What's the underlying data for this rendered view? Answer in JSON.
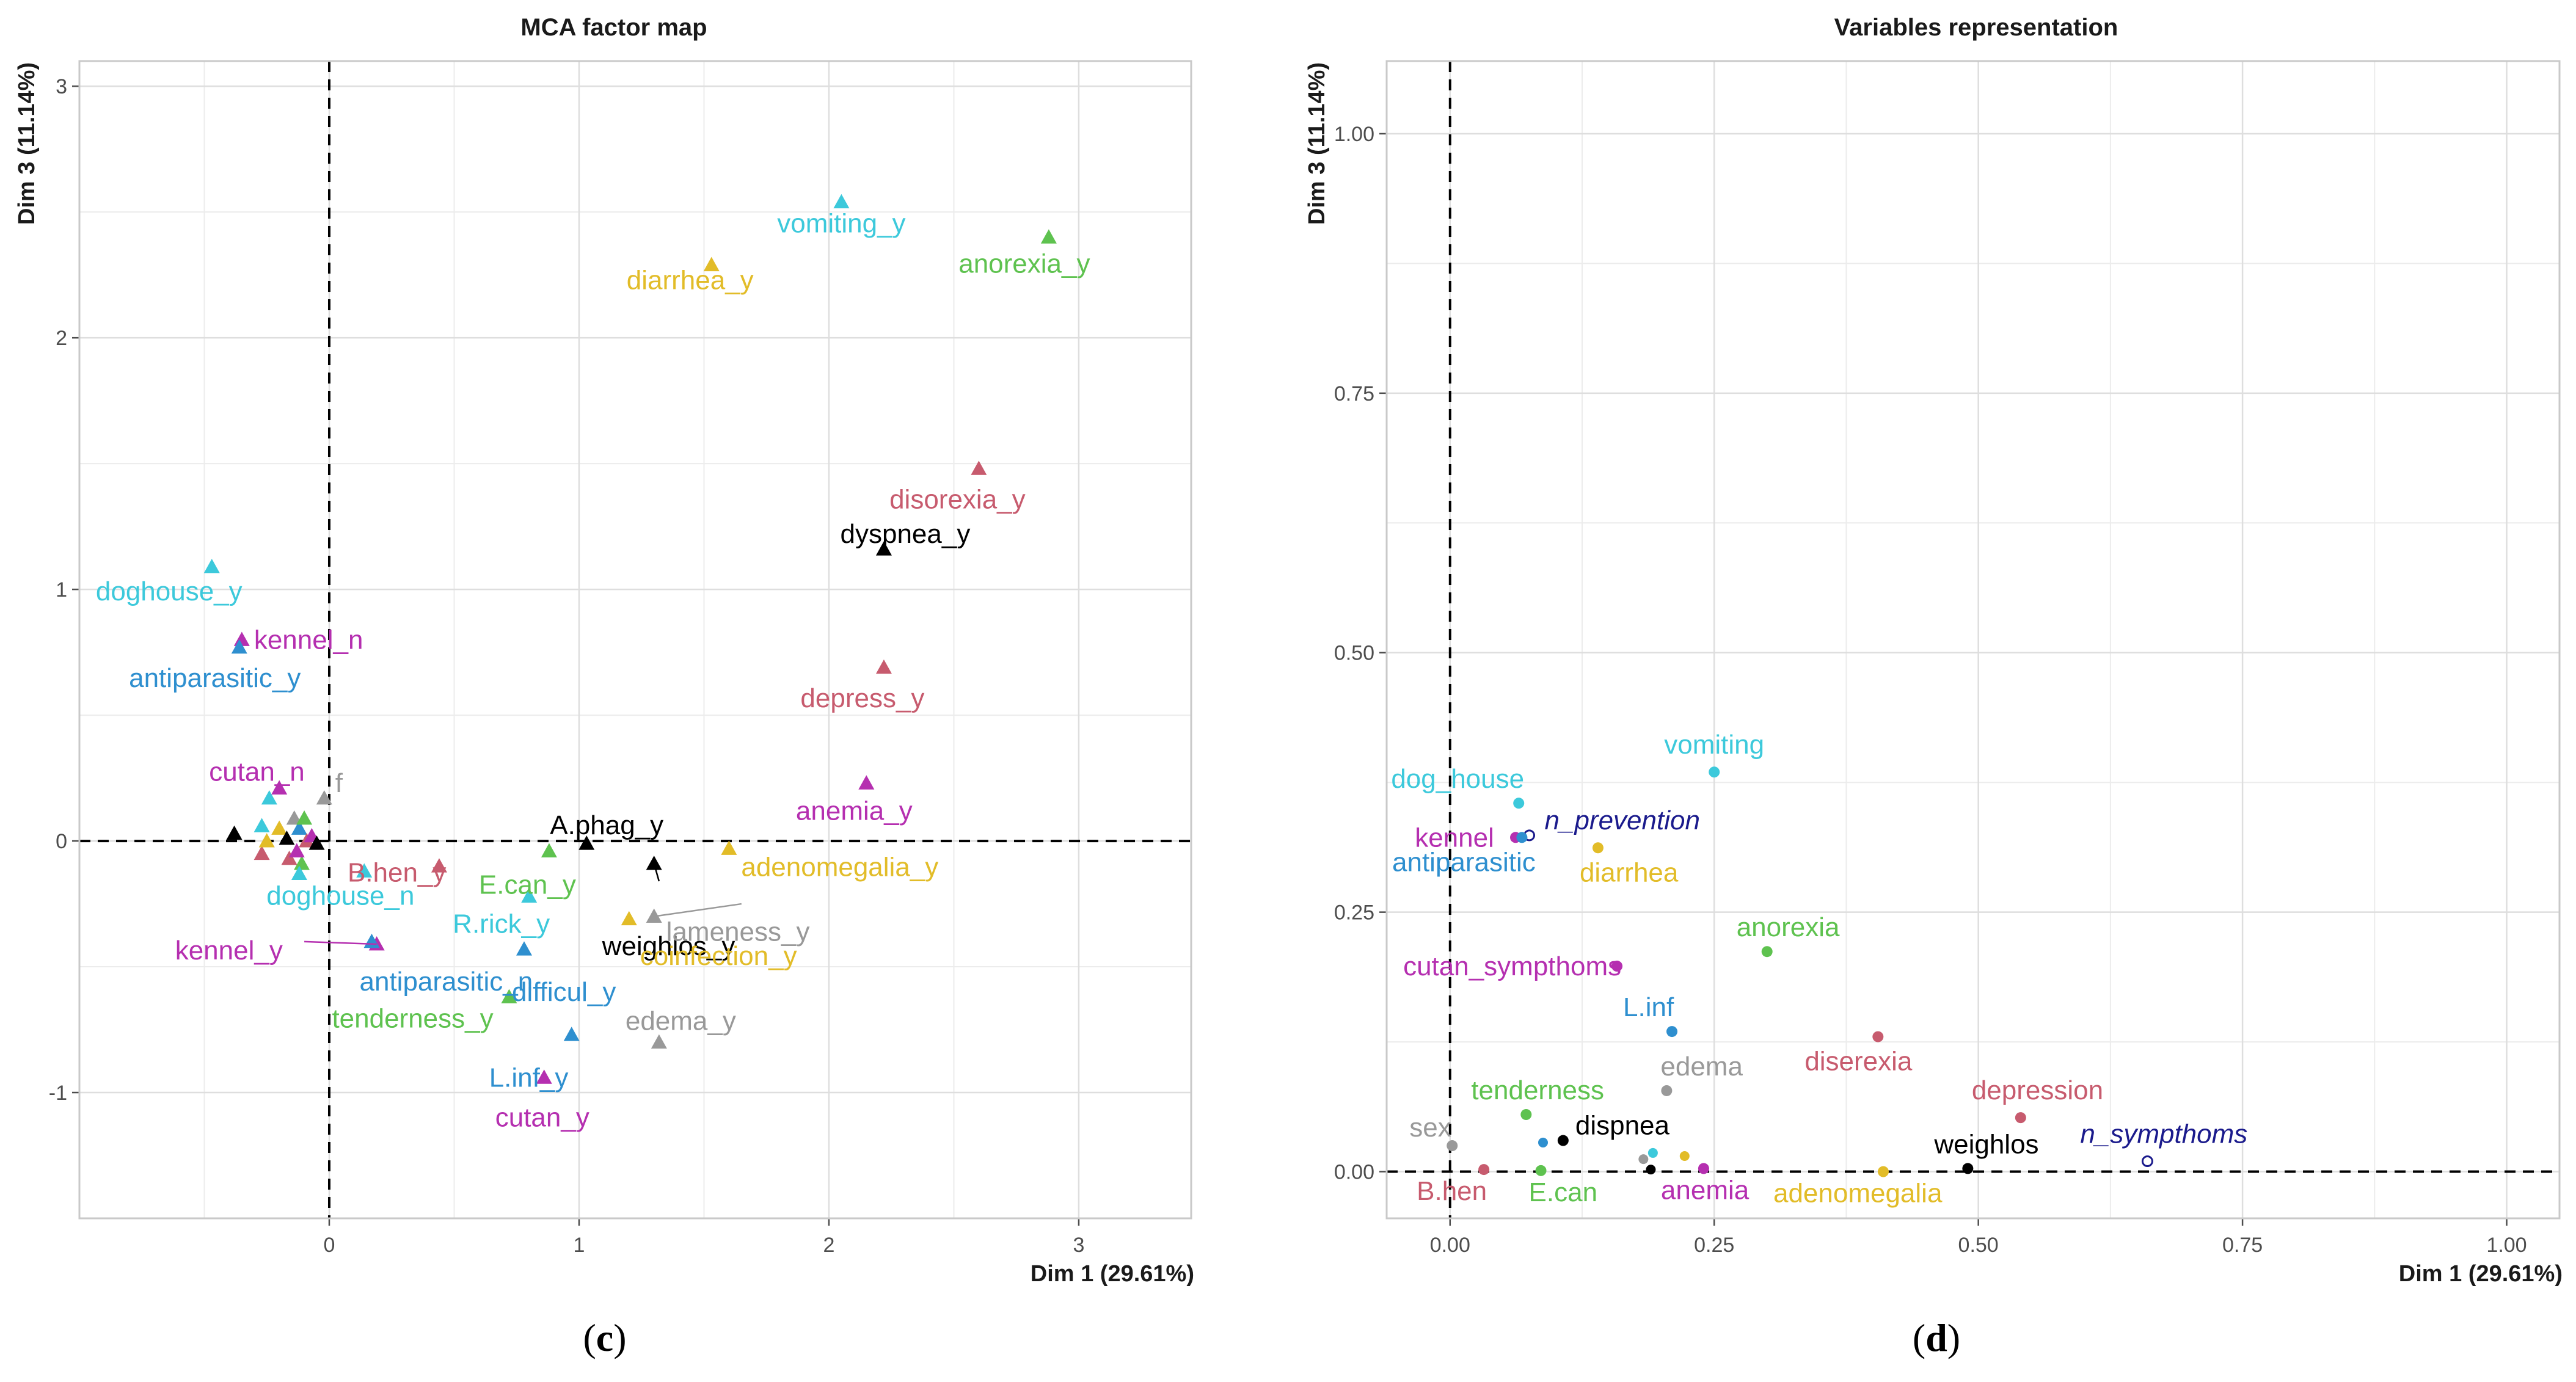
{
  "colors": {
    "black": "#000000",
    "grey": "#999999",
    "rose": "#c75b6e",
    "cyan": "#3cc9db",
    "blue": "#2e8fcf",
    "green": "#5ec24f",
    "purple": "#b52fb0",
    "yellow": "#e2bc28",
    "navy": "#1a1a8c"
  },
  "captions": {
    "left": "c",
    "right": "d"
  },
  "chart_data": [
    {
      "type": "scatter",
      "title": "MCA factor map",
      "xlabel": "Dim 1 (29.61%)",
      "ylabel": "Dim 3 (11.14%)",
      "xlim": [
        -1.0,
        3.45
      ],
      "ylim": [
        -1.5,
        3.1
      ],
      "xticks": [
        0,
        1,
        2,
        3
      ],
      "yticks": [
        -1,
        0,
        1,
        2,
        3
      ],
      "grid": true,
      "marker": "triangle",
      "labeled_points": [
        {
          "label": "vomiting_y",
          "x": 2.05,
          "y": 2.54,
          "color": "cyan"
        },
        {
          "label": "diarrhea_y",
          "x": 1.53,
          "y": 2.29,
          "color": "yellow"
        },
        {
          "label": "anorexia_y",
          "x": 2.88,
          "y": 2.4,
          "color": "green"
        },
        {
          "label": "disorexia_y",
          "x": 2.6,
          "y": 1.48,
          "color": "rose"
        },
        {
          "label": "dyspnea_y",
          "x": 2.22,
          "y": 1.16,
          "color": "black"
        },
        {
          "label": "doghouse_y",
          "x": -0.47,
          "y": 1.09,
          "color": "cyan"
        },
        {
          "label": "kennel_n",
          "x": -0.35,
          "y": 0.8,
          "color": "purple"
        },
        {
          "label": "antiparasitic_y",
          "x": -0.36,
          "y": 0.77,
          "color": "blue"
        },
        {
          "label": "depress_y",
          "x": 2.22,
          "y": 0.69,
          "color": "rose"
        },
        {
          "label": "cutan_n",
          "x": -0.2,
          "y": 0.21,
          "color": "purple"
        },
        {
          "label": "f",
          "x": -0.02,
          "y": 0.17,
          "color": "grey"
        },
        {
          "label": "anemia_y",
          "x": 2.15,
          "y": 0.23,
          "color": "purple"
        },
        {
          "label": "A.phag_y",
          "x": 1.03,
          "y": -0.01,
          "color": "black"
        },
        {
          "label": "adenomegalia_y",
          "x": 1.6,
          "y": -0.03,
          "color": "yellow"
        },
        {
          "label": "B.hen_y",
          "x": 0.44,
          "y": -0.1,
          "color": "rose"
        },
        {
          "label": "E.can_y",
          "x": 0.88,
          "y": -0.04,
          "color": "green"
        },
        {
          "label": "weighlos_y",
          "x": 1.3,
          "y": -0.09,
          "color": "black"
        },
        {
          "label": "lameness_y",
          "x": 1.3,
          "y": -0.3,
          "color": "grey"
        },
        {
          "label": "doghouse_n",
          "x": 0.14,
          "y": -0.12,
          "color": "cyan"
        },
        {
          "label": "R.rick_y",
          "x": 0.8,
          "y": -0.22,
          "color": "cyan"
        },
        {
          "label": "coinfection_y",
          "x": 1.2,
          "y": -0.31,
          "color": "yellow"
        },
        {
          "label": "kennel_y",
          "x": 0.19,
          "y": -0.41,
          "color": "purple"
        },
        {
          "label": "antiparasitic_n",
          "x": 0.17,
          "y": -0.4,
          "color": "blue"
        },
        {
          "label": "difficul_y",
          "x": 0.78,
          "y": -0.43,
          "color": "blue"
        },
        {
          "label": "tenderness_y",
          "x": 0.72,
          "y": -0.62,
          "color": "green"
        },
        {
          "label": "edema_y",
          "x": 1.32,
          "y": -0.8,
          "color": "grey"
        },
        {
          "label": "L.inf_y",
          "x": 0.97,
          "y": -0.77,
          "color": "blue"
        },
        {
          "label": "cutan_y",
          "x": 0.86,
          "y": -0.94,
          "color": "purple"
        }
      ],
      "unlabeled_points": [
        {
          "x": -0.38,
          "y": 0.03,
          "color": "black"
        },
        {
          "x": -0.27,
          "y": 0.06,
          "color": "cyan"
        },
        {
          "x": -0.24,
          "y": 0.17,
          "color": "cyan"
        },
        {
          "x": -0.2,
          "y": 0.05,
          "color": "yellow"
        },
        {
          "x": -0.17,
          "y": 0.01,
          "color": "black"
        },
        {
          "x": -0.14,
          "y": 0.09,
          "color": "grey"
        },
        {
          "x": -0.12,
          "y": 0.05,
          "color": "blue"
        },
        {
          "x": -0.1,
          "y": 0.09,
          "color": "green"
        },
        {
          "x": -0.09,
          "y": 0.0,
          "color": "rose"
        },
        {
          "x": -0.27,
          "y": -0.05,
          "color": "rose"
        },
        {
          "x": -0.16,
          "y": -0.07,
          "color": "rose"
        },
        {
          "x": -0.11,
          "y": -0.09,
          "color": "green"
        },
        {
          "x": -0.12,
          "y": -0.13,
          "color": "cyan"
        },
        {
          "x": -0.07,
          "y": 0.02,
          "color": "purple"
        },
        {
          "x": -0.05,
          "y": -0.01,
          "color": "black"
        },
        {
          "x": -0.25,
          "y": 0.0,
          "color": "yellow"
        },
        {
          "x": -0.13,
          "y": -0.04,
          "color": "purple"
        }
      ]
    },
    {
      "type": "scatter",
      "title": "Variables representation",
      "xlabel": "Dim 1 (29.61%)",
      "ylabel": "Dim 3 (11.14%)",
      "xlim": [
        -0.06,
        1.05
      ],
      "ylim": [
        -0.045,
        1.07
      ],
      "xticks": [
        0.0,
        0.25,
        0.5,
        0.75,
        1.0
      ],
      "yticks": [
        0.0,
        0.25,
        0.5,
        0.75,
        1.0
      ],
      "xtick_labels": [
        "0.00",
        "0.25",
        "0.50",
        "0.75",
        "1.00"
      ],
      "ytick_labels": [
        "0.00",
        "0.25",
        "0.50",
        "0.75",
        "1.00"
      ],
      "grid": true,
      "marker": "circle",
      "points": [
        {
          "label": "vomiting",
          "x": 0.25,
          "y": 0.385,
          "color": "cyan"
        },
        {
          "label": "dog_house",
          "x": 0.065,
          "y": 0.355,
          "color": "cyan"
        },
        {
          "label": "kennel",
          "x": 0.062,
          "y": 0.322,
          "color": "purple"
        },
        {
          "label": "n_prevention",
          "x": 0.075,
          "y": 0.324,
          "color": "navy",
          "supplementary": true
        },
        {
          "label": "antiparasitic",
          "x": 0.068,
          "y": 0.322,
          "color": "blue"
        },
        {
          "label": "diarrhea",
          "x": 0.14,
          "y": 0.312,
          "color": "yellow"
        },
        {
          "label": "anorexia",
          "x": 0.3,
          "y": 0.212,
          "color": "green"
        },
        {
          "label": "cutan_sympthoms",
          "x": 0.158,
          "y": 0.198,
          "color": "purple"
        },
        {
          "label": "L.inf",
          "x": 0.21,
          "y": 0.135,
          "color": "blue"
        },
        {
          "label": "diserexia",
          "x": 0.405,
          "y": 0.13,
          "color": "rose"
        },
        {
          "label": "edema",
          "x": 0.205,
          "y": 0.078,
          "color": "grey"
        },
        {
          "label": "tenderness",
          "x": 0.072,
          "y": 0.055,
          "color": "green"
        },
        {
          "label": "depression",
          "x": 0.54,
          "y": 0.052,
          "color": "rose"
        },
        {
          "label": "sex",
          "x": 0.002,
          "y": 0.025,
          "color": "grey"
        },
        {
          "label": "dispnea",
          "x": 0.107,
          "y": 0.03,
          "color": "black"
        },
        {
          "label": "weighlos",
          "x": 0.49,
          "y": 0.003,
          "color": "black"
        },
        {
          "label": "n_sympthoms",
          "x": 0.66,
          "y": 0.01,
          "color": "navy",
          "supplementary": true
        },
        {
          "label": "B.hen",
          "x": 0.032,
          "y": 0.002,
          "color": "rose"
        },
        {
          "label": "E.can",
          "x": 0.086,
          "y": 0.001,
          "color": "green"
        },
        {
          "label": "anemia",
          "x": 0.24,
          "y": 0.003,
          "color": "purple"
        },
        {
          "label": "adenomegalia",
          "x": 0.41,
          "y": 0.0,
          "color": "yellow"
        }
      ],
      "unlabeled_points": [
        {
          "x": 0.088,
          "y": 0.028,
          "color": "blue"
        },
        {
          "x": 0.183,
          "y": 0.012,
          "color": "grey"
        },
        {
          "x": 0.192,
          "y": 0.018,
          "color": "cyan"
        },
        {
          "x": 0.19,
          "y": 0.002,
          "color": "black"
        },
        {
          "x": 0.222,
          "y": 0.015,
          "color": "yellow"
        }
      ]
    }
  ]
}
